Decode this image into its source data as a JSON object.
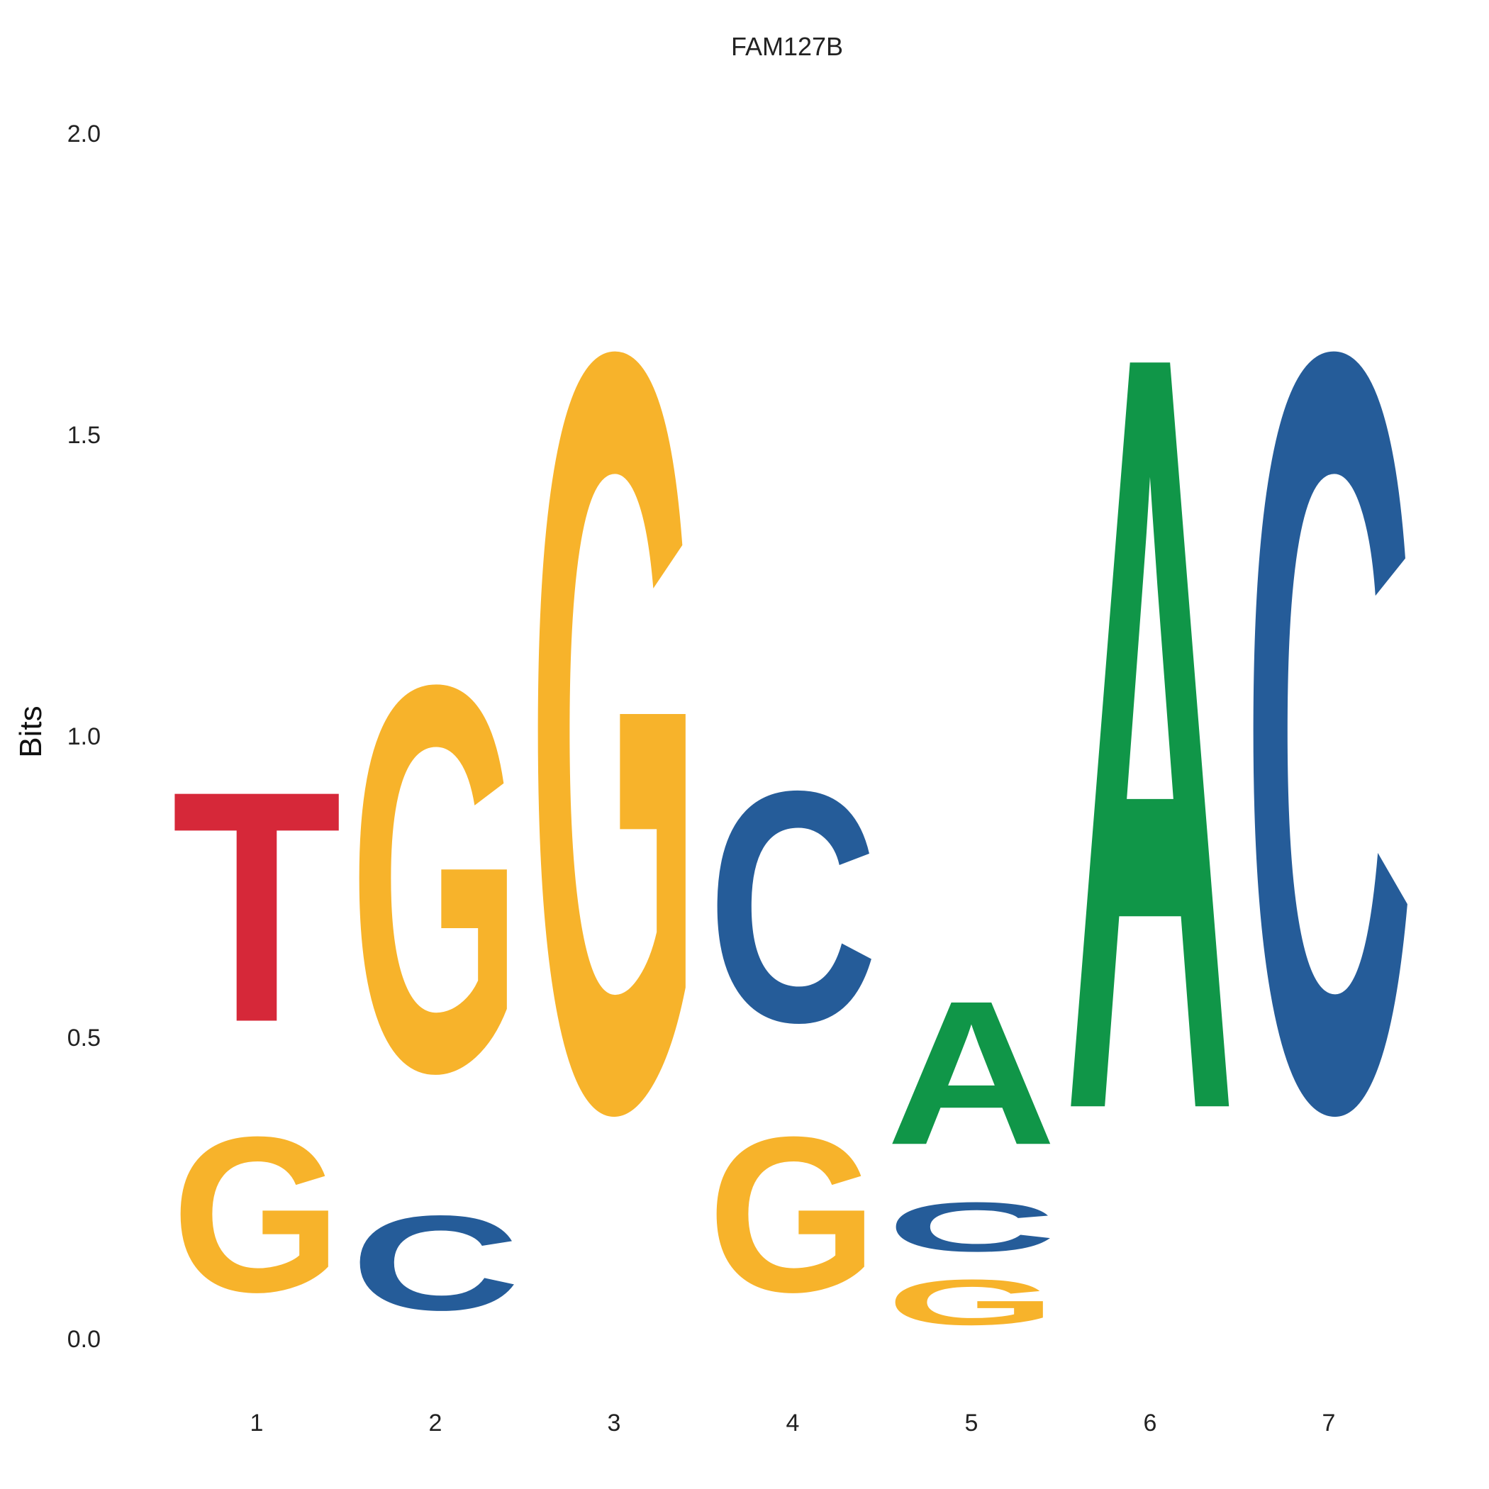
{
  "chart_data": {
    "type": "sequence_logo",
    "title": "FAM127B",
    "ylabel": "Bits",
    "ylim": [
      0,
      2
    ],
    "yticks": [
      "0.0",
      "0.5",
      "1.0",
      "1.5",
      "2.0"
    ],
    "ytick_values": [
      0,
      0.5,
      1.0,
      1.5,
      2.0
    ],
    "positions": [
      "1",
      "2",
      "3",
      "4",
      "5",
      "6",
      "7"
    ],
    "colors": {
      "A": "#109648",
      "C": "#255C99",
      "G": "#F7B32B",
      "T": "#D62839"
    },
    "stacks": [
      {
        "position": "1",
        "letters": [
          {
            "base": "G",
            "bits": 0.41
          },
          {
            "base": "T",
            "bits": 0.61
          }
        ]
      },
      {
        "position": "2",
        "letters": [
          {
            "base": "C",
            "bits": 0.25
          },
          {
            "base": "G",
            "bits": 1.02
          }
        ]
      },
      {
        "position": "3",
        "letters": [
          {
            "base": "G",
            "bits": 2.0
          }
        ]
      },
      {
        "position": "4",
        "letters": [
          {
            "base": "G",
            "bits": 0.41
          },
          {
            "base": "C",
            "bits": 0.61
          }
        ]
      },
      {
        "position": "5",
        "letters": [
          {
            "base": "G",
            "bits": 0.12
          },
          {
            "base": "C",
            "bits": 0.13
          },
          {
            "base": "A",
            "bits": 0.38
          }
        ]
      },
      {
        "position": "6",
        "letters": [
          {
            "base": "A",
            "bits": 2.0
          }
        ]
      },
      {
        "position": "7",
        "letters": [
          {
            "base": "C",
            "bits": 2.0
          }
        ]
      }
    ]
  }
}
